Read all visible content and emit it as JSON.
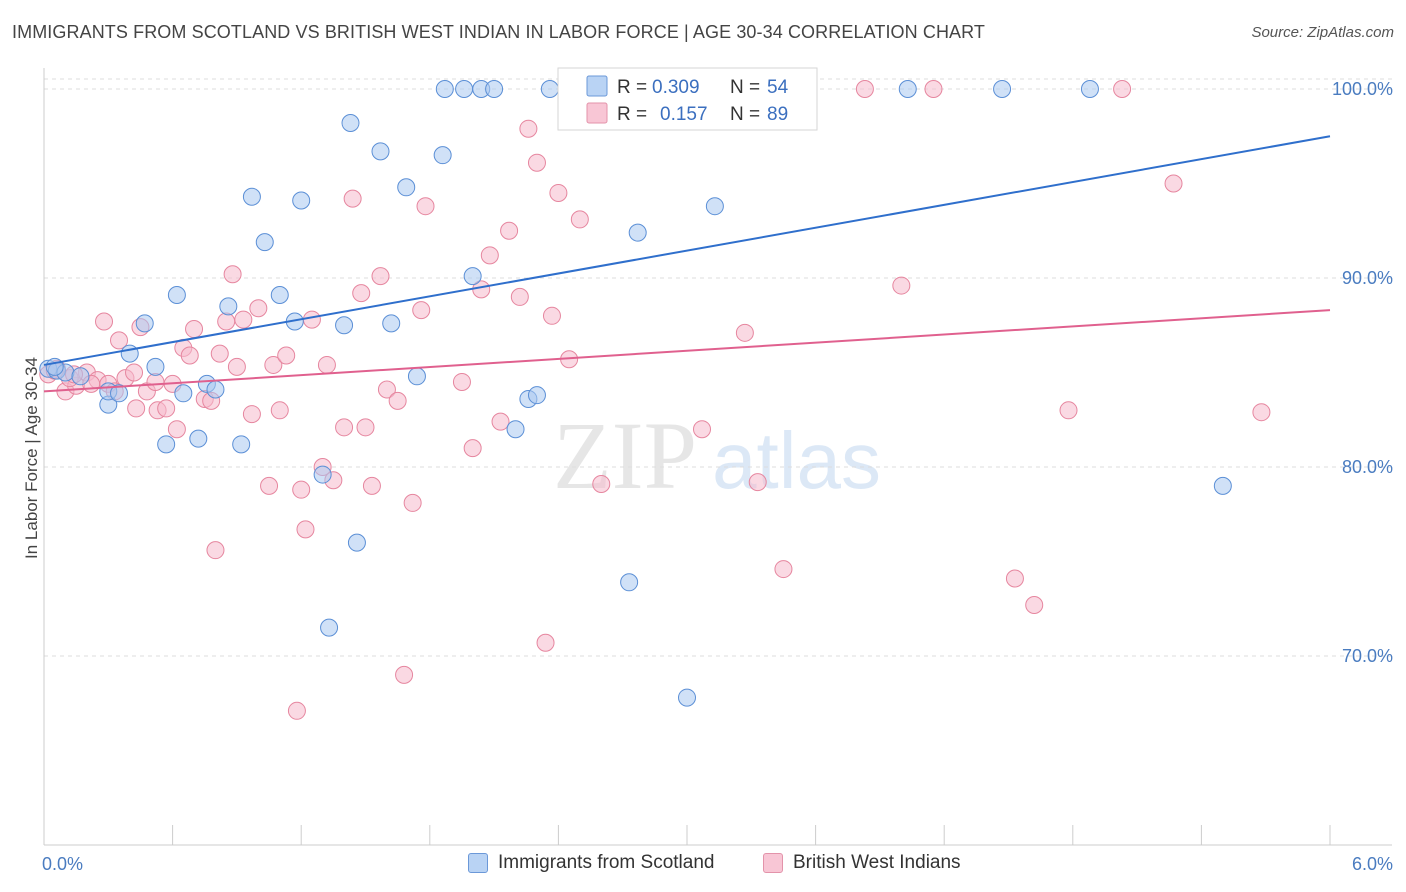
{
  "header": {
    "title": "IMMIGRANTS FROM SCOTLAND VS BRITISH WEST INDIAN IN LABOR FORCE | AGE 30-34 CORRELATION CHART",
    "source": "Source: ZipAtlas.com"
  },
  "watermark": {
    "zip": "ZIP",
    "atlas": "atlas"
  },
  "legend_box": {
    "rows": [
      {
        "r_label": "R =",
        "r_value": "0.309",
        "n_label": "N =",
        "n_value": "54"
      },
      {
        "r_label": "R =",
        "r_value": "0.157",
        "n_label": "N =",
        "n_value": "89"
      }
    ]
  },
  "bottom_legend": {
    "items": [
      {
        "label": "Immigrants from Scotland"
      },
      {
        "label": "British West Indians"
      }
    ]
  },
  "colors": {
    "blue_fill": "#a9c8f0",
    "blue_stroke": "#5b8fd6",
    "blue_line": "#2f6fcc",
    "pink_fill": "#f6b9cc",
    "pink_stroke": "#e6869f",
    "pink_line": "#e0608e",
    "grid": "#dddddd",
    "axis_tick_text": "#4a7cc0"
  },
  "chart_data": {
    "type": "scatter",
    "title": "IMMIGRANTS FROM SCOTLAND VS BRITISH WEST INDIAN IN LABOR FORCE | AGE 30-34 CORRELATION CHART",
    "xlabel": "",
    "ylabel": "In Labor Force | Age 30-34",
    "xlim": [
      0,
      6
    ],
    "ylim": [
      60,
      100.9
    ],
    "x_tick_labels": [
      "0.0%",
      "6.0%"
    ],
    "y_ticks": [
      70,
      80,
      90,
      100
    ],
    "y_tick_labels": [
      "70.0%",
      "80.0%",
      "90.0%",
      "100.0%"
    ],
    "grid": true,
    "legend_position": "top-center",
    "series": [
      {
        "name": "Immigrants from Scotland",
        "R": 0.309,
        "N": 54,
        "trend": {
          "x": [
            0,
            6
          ],
          "y": [
            85.4,
            97.5
          ]
        },
        "points": [
          [
            0.02,
            85.2
          ],
          [
            0.06,
            85.1
          ],
          [
            0.1,
            85.0
          ],
          [
            0.17,
            84.8
          ],
          [
            0.3,
            83.3
          ],
          [
            0.3,
            84.0
          ],
          [
            0.35,
            83.9
          ],
          [
            0.4,
            86.0
          ],
          [
            0.47,
            87.6
          ],
          [
            0.52,
            85.3
          ],
          [
            0.57,
            81.2
          ],
          [
            0.62,
            89.1
          ],
          [
            0.65,
            83.9
          ],
          [
            0.72,
            81.5
          ],
          [
            0.76,
            84.4
          ],
          [
            0.8,
            84.1
          ],
          [
            0.86,
            88.5
          ],
          [
            0.92,
            81.2
          ],
          [
            0.97,
            94.3
          ],
          [
            1.03,
            91.9
          ],
          [
            1.1,
            89.1
          ],
          [
            1.17,
            87.7
          ],
          [
            1.2,
            94.1
          ],
          [
            1.3,
            79.6
          ],
          [
            1.33,
            71.5
          ],
          [
            1.4,
            87.5
          ],
          [
            1.46,
            76.0
          ],
          [
            1.43,
            98.2
          ],
          [
            1.57,
            96.7
          ],
          [
            1.62,
            87.6
          ],
          [
            1.69,
            94.8
          ],
          [
            1.74,
            84.8
          ],
          [
            1.86,
            96.5
          ],
          [
            1.87,
            100.0
          ],
          [
            1.96,
            100.0
          ],
          [
            2.0,
            90.1
          ],
          [
            2.04,
            100.0
          ],
          [
            2.1,
            100.0
          ],
          [
            2.2,
            82.0
          ],
          [
            2.26,
            83.6
          ],
          [
            2.3,
            83.8
          ],
          [
            2.36,
            100.0
          ],
          [
            2.46,
            100.0
          ],
          [
            2.5,
            100.0
          ],
          [
            2.73,
            73.9
          ],
          [
            2.77,
            92.4
          ],
          [
            3.0,
            67.8
          ],
          [
            3.13,
            93.8
          ],
          [
            3.21,
            100.0
          ],
          [
            4.03,
            100.0
          ],
          [
            4.47,
            100.0
          ],
          [
            4.88,
            100.0
          ],
          [
            5.5,
            79.0
          ],
          [
            0.05,
            85.3
          ]
        ]
      },
      {
        "name": "British West Indians",
        "R": 0.157,
        "N": 89,
        "trend": {
          "x": [
            0,
            6
          ],
          "y": [
            84.0,
            88.3
          ]
        },
        "points": [
          [
            0.02,
            84.9
          ],
          [
            0.06,
            85.2
          ],
          [
            0.1,
            84.0
          ],
          [
            0.15,
            84.3
          ],
          [
            0.2,
            85.0
          ],
          [
            0.25,
            84.6
          ],
          [
            0.28,
            87.7
          ],
          [
            0.3,
            84.4
          ],
          [
            0.35,
            86.7
          ],
          [
            0.38,
            84.7
          ],
          [
            0.43,
            83.1
          ],
          [
            0.45,
            87.4
          ],
          [
            0.48,
            84.0
          ],
          [
            0.52,
            84.5
          ],
          [
            0.53,
            83.0
          ],
          [
            0.57,
            83.1
          ],
          [
            0.6,
            84.4
          ],
          [
            0.62,
            82.0
          ],
          [
            0.65,
            86.3
          ],
          [
            0.68,
            85.9
          ],
          [
            0.7,
            87.3
          ],
          [
            0.75,
            83.6
          ],
          [
            0.78,
            83.5
          ],
          [
            0.8,
            75.6
          ],
          [
            0.82,
            86.0
          ],
          [
            0.85,
            87.7
          ],
          [
            0.88,
            90.2
          ],
          [
            0.9,
            85.3
          ],
          [
            0.93,
            87.8
          ],
          [
            0.97,
            82.8
          ],
          [
            1.0,
            88.4
          ],
          [
            1.05,
            79.0
          ],
          [
            1.07,
            85.4
          ],
          [
            1.1,
            83.0
          ],
          [
            1.13,
            85.9
          ],
          [
            1.18,
            67.1
          ],
          [
            1.2,
            78.8
          ],
          [
            1.22,
            76.7
          ],
          [
            1.25,
            87.8
          ],
          [
            1.3,
            80.0
          ],
          [
            1.32,
            85.4
          ],
          [
            1.35,
            79.3
          ],
          [
            1.4,
            82.1
          ],
          [
            1.44,
            94.2
          ],
          [
            1.48,
            89.2
          ],
          [
            1.5,
            82.1
          ],
          [
            1.53,
            79.0
          ],
          [
            1.57,
            90.1
          ],
          [
            1.6,
            84.1
          ],
          [
            1.65,
            83.5
          ],
          [
            1.68,
            69.0
          ],
          [
            1.72,
            78.1
          ],
          [
            1.76,
            88.3
          ],
          [
            1.78,
            93.8
          ],
          [
            1.95,
            84.5
          ],
          [
            2.0,
            81.0
          ],
          [
            2.04,
            89.4
          ],
          [
            2.08,
            91.2
          ],
          [
            2.13,
            82.4
          ],
          [
            2.17,
            92.5
          ],
          [
            2.22,
            89.0
          ],
          [
            2.26,
            97.9
          ],
          [
            2.3,
            96.1
          ],
          [
            2.34,
            70.7
          ],
          [
            2.37,
            88.0
          ],
          [
            2.4,
            94.5
          ],
          [
            2.45,
            85.7
          ],
          [
            2.5,
            93.1
          ],
          [
            2.6,
            79.1
          ],
          [
            2.65,
            100.0
          ],
          [
            3.07,
            82.0
          ],
          [
            3.27,
            87.1
          ],
          [
            3.33,
            79.2
          ],
          [
            3.45,
            74.6
          ],
          [
            3.83,
            100.0
          ],
          [
            4.0,
            89.6
          ],
          [
            4.15,
            100.0
          ],
          [
            4.53,
            74.1
          ],
          [
            4.62,
            72.7
          ],
          [
            4.78,
            83.0
          ],
          [
            5.03,
            100.0
          ],
          [
            5.27,
            95.0
          ],
          [
            5.68,
            82.9
          ],
          [
            0.12,
            84.7
          ],
          [
            0.22,
            84.4
          ],
          [
            0.33,
            84.0
          ],
          [
            0.42,
            85.0
          ],
          [
            0.05,
            85.1
          ],
          [
            0.14,
            84.9
          ]
        ]
      }
    ]
  }
}
